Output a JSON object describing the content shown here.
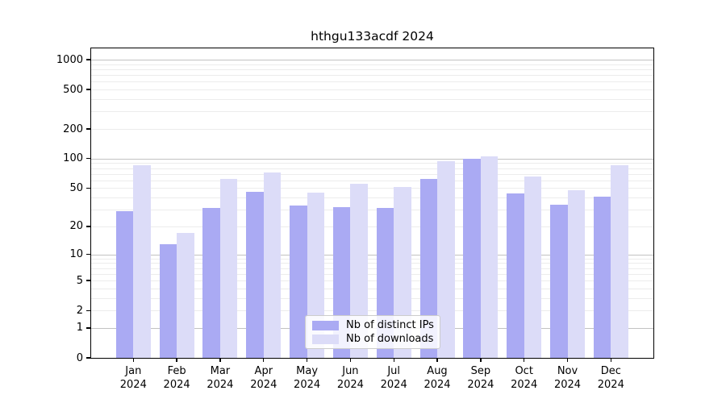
{
  "chart_data": {
    "type": "bar",
    "title": "hthgu133acdf 2024",
    "categories": [
      "Jan",
      "Feb",
      "Mar",
      "Apr",
      "May",
      "Jun",
      "Jul",
      "Aug",
      "Sep",
      "Oct",
      "Nov",
      "Dec"
    ],
    "x_year_label": "2024",
    "series": [
      {
        "name": "Nb of distinct IPs",
        "color": "#aaaaf3",
        "values": [
          29,
          13,
          31,
          46,
          33,
          32,
          31,
          62,
          100,
          44,
          34,
          41
        ]
      },
      {
        "name": "Nb of downloads",
        "color": "#dcdcf8",
        "values": [
          86,
          17,
          62,
          72,
          45,
          55,
          51,
          94,
          106,
          66,
          48,
          86
        ]
      }
    ],
    "y_scale": "log1p",
    "y_ticks": [
      0,
      1,
      2,
      5,
      10,
      20,
      50,
      100,
      200,
      500,
      1000
    ],
    "y_major_gridlines": [
      1,
      10,
      100,
      1000
    ],
    "y_axis_max": 1300,
    "grid": true,
    "legend": {
      "position": "inside-bottom-center",
      "entries": [
        "Nb of distinct IPs",
        "Nb of downloads"
      ]
    }
  }
}
